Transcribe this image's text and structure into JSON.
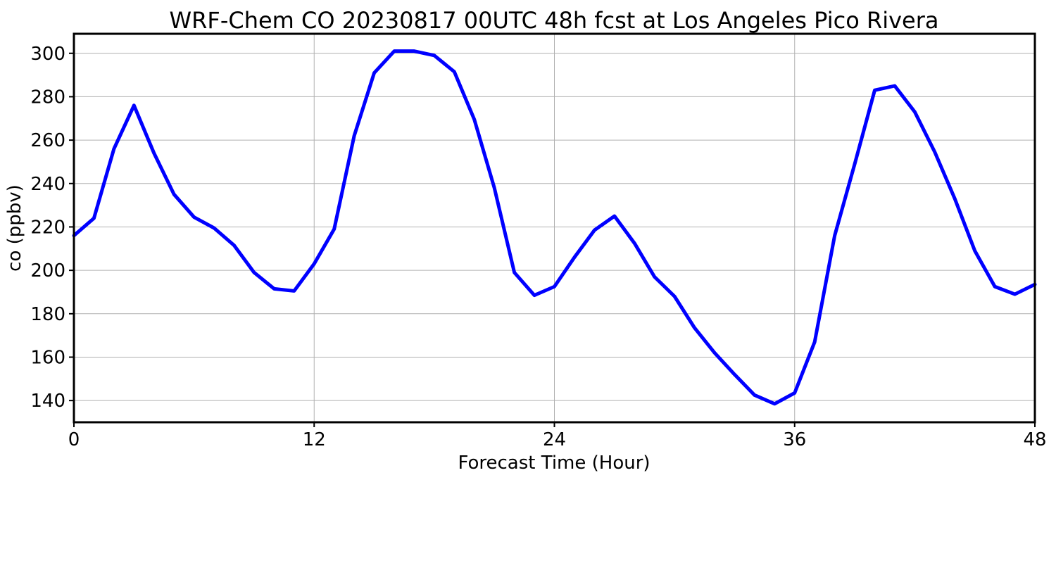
{
  "chart_data": {
    "type": "line",
    "title": "WRF-Chem CO  20230817 00UTC 48h fcst at Los Angeles Pico Rivera",
    "xlabel": "Forecast Time (Hour)",
    "ylabel": "co  (ppbv)",
    "xlim": [
      0,
      48
    ],
    "ylim": [
      130,
      309
    ],
    "xticks": [
      0,
      12,
      24,
      36,
      48
    ],
    "yticks": [
      140,
      160,
      180,
      200,
      220,
      240,
      260,
      280,
      300
    ],
    "grid": true,
    "series": [
      {
        "color": "#0000ff",
        "x": [
          0,
          1,
          2,
          3,
          4,
          5,
          6,
          7,
          8,
          9,
          10,
          11,
          12,
          13,
          14,
          15,
          16,
          17,
          18,
          19,
          20,
          21,
          22,
          23,
          24,
          25,
          26,
          27,
          28,
          29,
          30,
          31,
          32,
          33,
          34,
          35,
          36,
          37,
          38,
          39,
          40,
          41,
          42,
          43,
          44,
          45,
          46,
          47,
          48
        ],
        "values": [
          216,
          224,
          256,
          276,
          254,
          235,
          224.5,
          219.5,
          211.5,
          199,
          191.5,
          190.5,
          203,
          219,
          262,
          291,
          301,
          301,
          299,
          291.5,
          269.5,
          238,
          199,
          188.5,
          192.5,
          206,
          218.5,
          225,
          212.5,
          197,
          188,
          173.5,
          162,
          152,
          142.5,
          138.5,
          143.5,
          167,
          216,
          249,
          283,
          285,
          273,
          254.5,
          233,
          209,
          192.5,
          189,
          193.5
        ]
      }
    ]
  }
}
